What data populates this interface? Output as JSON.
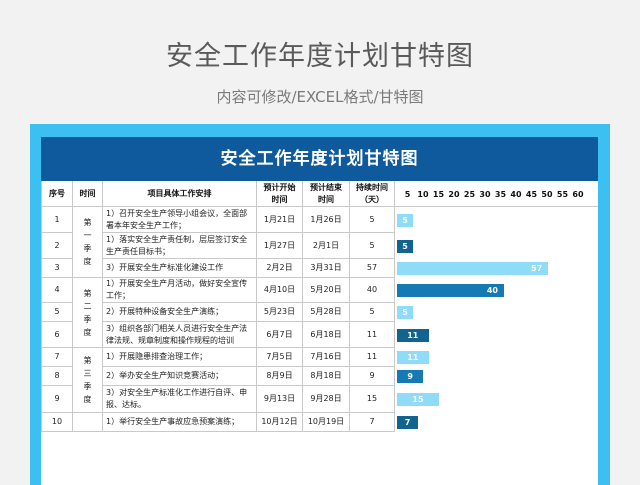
{
  "page": {
    "title": "安全工作年度计划甘特图",
    "subtitle": "内容可修改/EXCEL格式/甘特图"
  },
  "sheet": {
    "banner": "安全工作年度计划甘特图",
    "headers": {
      "no": "序号",
      "period": "时间",
      "task": "项目具体工作安排",
      "start": "预计开始时间",
      "end": "预计结束时间",
      "duration": "持续时间（天）"
    },
    "ticks": [
      "5",
      "10",
      "15",
      "20",
      "25",
      "30",
      "35",
      "40",
      "45",
      "50",
      "55",
      "60"
    ],
    "seasons": [
      "第一季度",
      "第二季度",
      "第三季度"
    ],
    "rows": [
      {
        "no": "1",
        "task": "1）召开安全生产领导小组会议，全面部署本年安全生产工作；",
        "start": "1月21日",
        "end": "1月26日",
        "duration": "5"
      },
      {
        "no": "2",
        "task": "1）落实安全生产责任制，层层签订安全生产责任目标书；",
        "start": "1月27日",
        "end": "2月1日",
        "duration": "5"
      },
      {
        "no": "3",
        "task": "3）开展安全生产标准化建设工作",
        "start": "2月2日",
        "end": "3月31日",
        "duration": "57"
      },
      {
        "no": "4",
        "task": "1）开展安全生产月活动，做好安全宣传工作；",
        "start": "4月10日",
        "end": "5月20日",
        "duration": "40"
      },
      {
        "no": "5",
        "task": "2）开展特种设备安全生产演练；",
        "start": "5月23日",
        "end": "5月28日",
        "duration": "5"
      },
      {
        "no": "6",
        "task": "3）组织各部门相关人员进行安全生产法律法规、规章制度和操作规程的培训",
        "start": "6月7日",
        "end": "6月18日",
        "duration": "11"
      },
      {
        "no": "7",
        "task": "1）开展隐患排查治理工作；",
        "start": "7月5日",
        "end": "7月16日",
        "duration": "11"
      },
      {
        "no": "8",
        "task": "2）举办安全生产知识竞赛活动；",
        "start": "8月9日",
        "end": "8月18日",
        "duration": "9"
      },
      {
        "no": "9",
        "task": "3）对安全生产标准化工作进行自评、申报、达标。",
        "start": "9月13日",
        "end": "9月28日",
        "duration": "15"
      },
      {
        "no": "10",
        "task": "1）举行安全生产事故应急预案演练；",
        "start": "10月12日",
        "end": "10月19日",
        "duration": "7"
      }
    ]
  },
  "chart_data": {
    "type": "bar",
    "orientation": "horizontal",
    "categories": [
      "1",
      "2",
      "3",
      "4",
      "5",
      "6",
      "7",
      "8",
      "9",
      "10"
    ],
    "values": [
      5,
      5,
      57,
      40,
      5,
      11,
      11,
      9,
      15,
      7
    ],
    "xlim": [
      0,
      60
    ],
    "x_ticks": [
      5,
      10,
      15,
      20,
      25,
      30,
      35,
      40,
      45,
      50,
      55,
      60
    ],
    "colors": {
      "light": "#8fdcf9",
      "dark": "#12638f",
      "mid": "#1579b4"
    },
    "bar_styles": [
      "light",
      "dark",
      "light",
      "mid",
      "light",
      "dark",
      "light",
      "mid",
      "light",
      "dark"
    ]
  }
}
